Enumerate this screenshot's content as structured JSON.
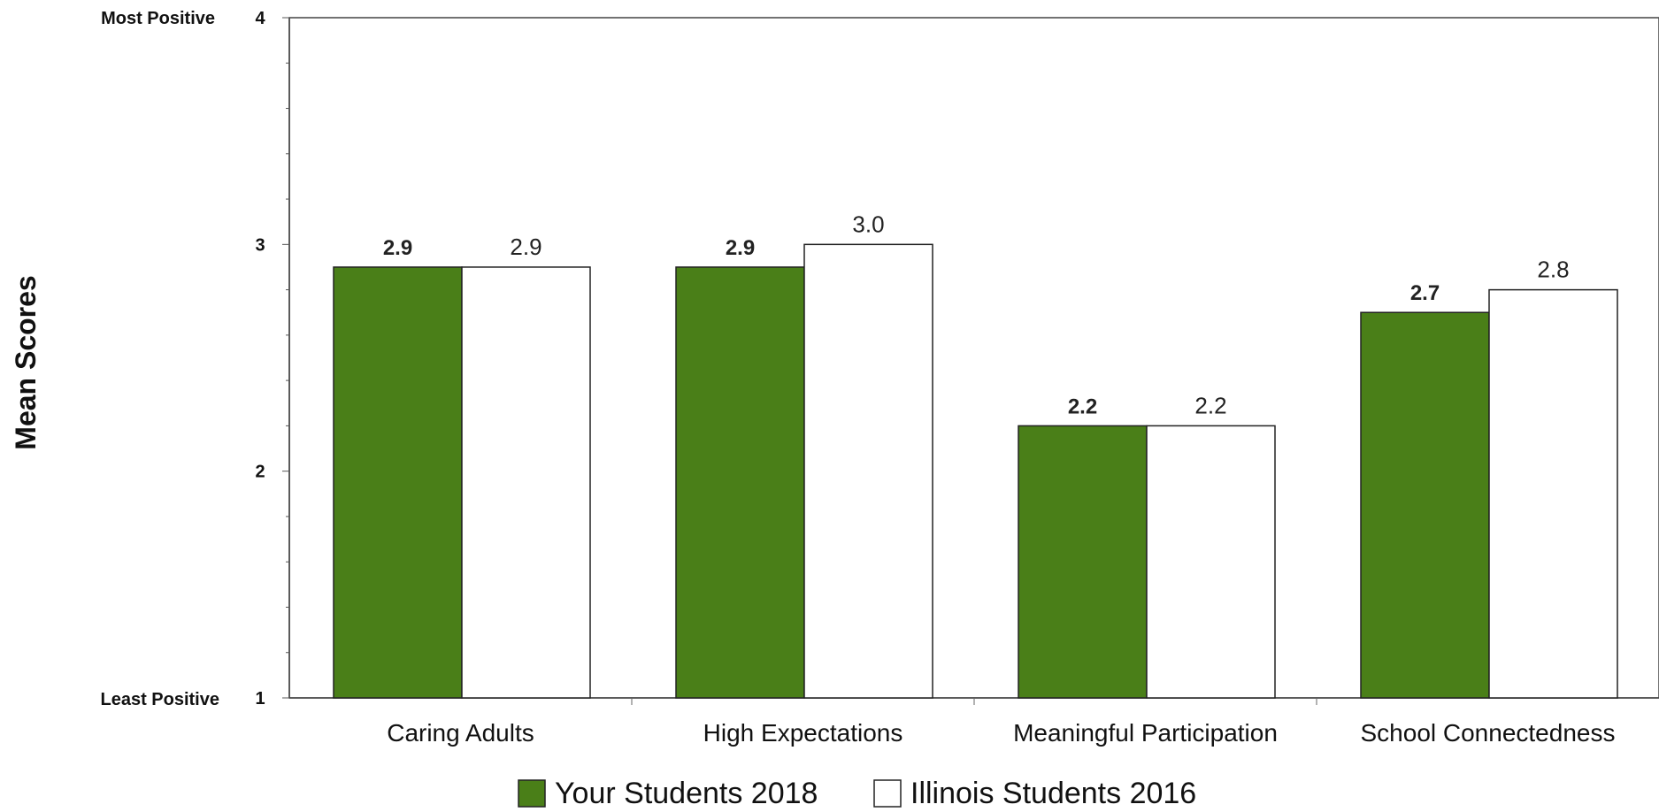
{
  "chart_data": {
    "type": "bar",
    "categories": [
      "Caring Adults",
      "High Expectations",
      "Meaningful Participation",
      "School Connectedness"
    ],
    "series": [
      {
        "name": "Your Students 2018",
        "values": [
          2.9,
          2.9,
          2.2,
          2.7
        ],
        "labels": [
          "2.9",
          "2.9",
          "2.2",
          "2.7"
        ],
        "color": "#4a7f18"
      },
      {
        "name": "Illinois Students 2016",
        "values": [
          2.9,
          3.0,
          2.2,
          2.8
        ],
        "labels": [
          "2.9",
          "3.0",
          "2.2",
          "2.8"
        ],
        "color": "#ffffff"
      }
    ],
    "ylabel": "Mean Scores",
    "ylim": [
      1,
      4
    ],
    "yticks": [
      "1",
      "2",
      "3",
      "4"
    ],
    "y_anchor_labels": {
      "top": "Most Positive",
      "bottom": "Least Positive"
    },
    "legend_position": "bottom-center",
    "grid": false
  }
}
